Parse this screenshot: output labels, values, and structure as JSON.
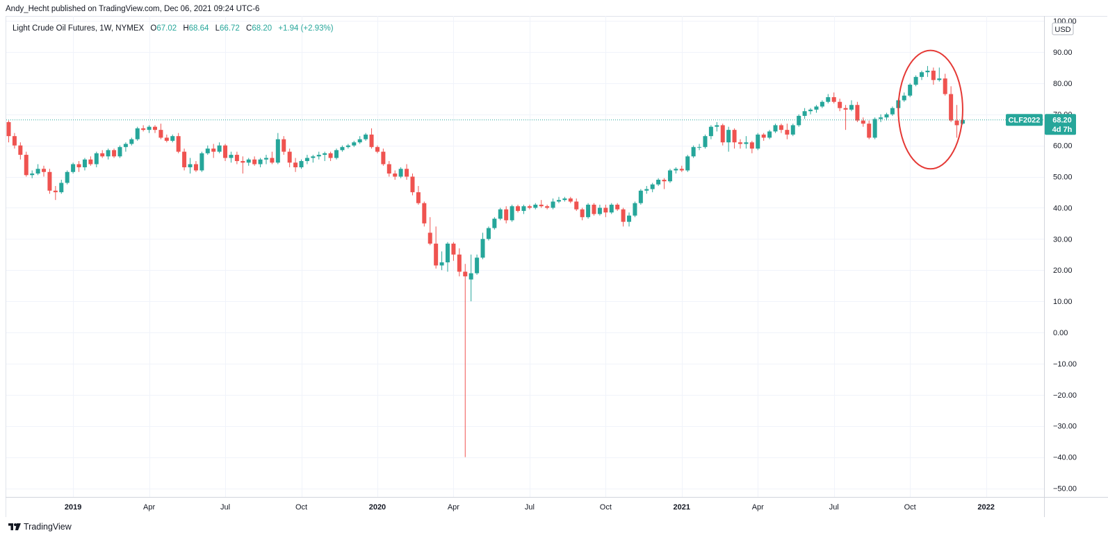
{
  "attribution": "Andy_Hecht published on TradingView.com, Dec 06, 2021 09:24 UTC-6",
  "legend": {
    "title": "Light Crude Oil Futures, 1W, NYMEX",
    "o_key": "O",
    "o_val": "67.02",
    "h_key": "H",
    "h_val": "68.64",
    "l_key": "L",
    "l_val": "66.72",
    "c_key": "C",
    "c_val": "68.20",
    "change": "+1.94 (+2.93%)"
  },
  "colors": {
    "up": "#26a69a",
    "down": "#ef5350",
    "annotation": "#e53935",
    "grid": "#f0f3fa"
  },
  "price_tag": {
    "symbol": "CLF2022",
    "price": "68.20",
    "countdown": "4d 7h",
    "value": 68.2
  },
  "currency": "USD",
  "brand": "TradingView",
  "chart_data": {
    "type": "candlestick",
    "title": "Light Crude Oil Futures, 1W, NYMEX",
    "ylim": [
      -55,
      105
    ],
    "yticks": [
      -50,
      -40,
      -30,
      -20,
      -10,
      0,
      10,
      20,
      30,
      40,
      50,
      60,
      70,
      80,
      90,
      100
    ],
    "ytick_labels": [
      "−50.00",
      "−40.00",
      "−30.00",
      "−20.00",
      "−10.00",
      "0.00",
      "10.00",
      "20.00",
      "30.00",
      "40.00",
      "50.00",
      "60.00",
      "70.00",
      "80.00",
      "90.00",
      "100.00"
    ],
    "xticks": [
      {
        "label": "2019",
        "week": 11,
        "bold": true
      },
      {
        "label": "Apr",
        "week": 24,
        "bold": false
      },
      {
        "label": "Jul",
        "week": 37,
        "bold": false
      },
      {
        "label": "Oct",
        "week": 50,
        "bold": false
      },
      {
        "label": "2020",
        "week": 63,
        "bold": true
      },
      {
        "label": "Apr",
        "week": 76,
        "bold": false
      },
      {
        "label": "Jul",
        "week": 89,
        "bold": false
      },
      {
        "label": "Oct",
        "week": 102,
        "bold": false
      },
      {
        "label": "2021",
        "week": 115,
        "bold": true
      },
      {
        "label": "Apr",
        "week": 128,
        "bold": false
      },
      {
        "label": "Jul",
        "week": 141,
        "bold": false
      },
      {
        "label": "Oct",
        "week": 154,
        "bold": false
      },
      {
        "label": "2022",
        "week": 167,
        "bold": true
      }
    ],
    "annotation": {
      "type": "ellipse",
      "center_week": 157.5,
      "center_price": 71.5,
      "half_width_weeks": 5.5,
      "half_height_price": 19
    },
    "candles": [
      {
        "o": 67.5,
        "h": 68,
        "l": 61,
        "c": 63
      },
      {
        "o": 63,
        "h": 64,
        "l": 59,
        "c": 60
      },
      {
        "o": 60,
        "h": 61,
        "l": 55.5,
        "c": 57
      },
      {
        "o": 57,
        "h": 58,
        "l": 50,
        "c": 50.5
      },
      {
        "o": 50.5,
        "h": 52,
        "l": 49.5,
        "c": 51
      },
      {
        "o": 51,
        "h": 54,
        "l": 50.5,
        "c": 52.5
      },
      {
        "o": 52.5,
        "h": 53.5,
        "l": 50,
        "c": 51.5
      },
      {
        "o": 51.5,
        "h": 52.5,
        "l": 44.5,
        "c": 45.5
      },
      {
        "o": 45.5,
        "h": 47,
        "l": 42.5,
        "c": 45
      },
      {
        "o": 45,
        "h": 49,
        "l": 44.5,
        "c": 48
      },
      {
        "o": 48,
        "h": 52,
        "l": 47.5,
        "c": 51.5
      },
      {
        "o": 51.5,
        "h": 54.5,
        "l": 51,
        "c": 54
      },
      {
        "o": 54,
        "h": 55,
        "l": 51.5,
        "c": 53
      },
      {
        "o": 53,
        "h": 56,
        "l": 52,
        "c": 55.5
      },
      {
        "o": 55.5,
        "h": 56.5,
        "l": 53.5,
        "c": 54
      },
      {
        "o": 54,
        "h": 58,
        "l": 53,
        "c": 57.5
      },
      {
        "o": 57.5,
        "h": 58.5,
        "l": 56,
        "c": 56.5
      },
      {
        "o": 56.5,
        "h": 59,
        "l": 55.5,
        "c": 58.5
      },
      {
        "o": 58.5,
        "h": 59,
        "l": 56,
        "c": 56.5
      },
      {
        "o": 56.5,
        "h": 60,
        "l": 56,
        "c": 59.5
      },
      {
        "o": 59.5,
        "h": 61,
        "l": 58,
        "c": 60.5
      },
      {
        "o": 60.5,
        "h": 62.5,
        "l": 60,
        "c": 62
      },
      {
        "o": 62,
        "h": 66,
        "l": 61.5,
        "c": 65.5
      },
      {
        "o": 65.5,
        "h": 66.5,
        "l": 64.5,
        "c": 65
      },
      {
        "o": 65,
        "h": 66.5,
        "l": 64,
        "c": 66
      },
      {
        "o": 66,
        "h": 66.5,
        "l": 64,
        "c": 65
      },
      {
        "o": 65,
        "h": 67,
        "l": 62,
        "c": 62.5
      },
      {
        "o": 62.5,
        "h": 63.5,
        "l": 61,
        "c": 61.5
      },
      {
        "o": 61.5,
        "h": 63.5,
        "l": 61,
        "c": 63
      },
      {
        "o": 63,
        "h": 64,
        "l": 57.5,
        "c": 58
      },
      {
        "o": 58,
        "h": 59,
        "l": 52,
        "c": 53
      },
      {
        "o": 53,
        "h": 56,
        "l": 51,
        "c": 54
      },
      {
        "o": 54,
        "h": 55,
        "l": 51.5,
        "c": 52
      },
      {
        "o": 52,
        "h": 58,
        "l": 51.5,
        "c": 57.5
      },
      {
        "o": 57.5,
        "h": 60,
        "l": 57,
        "c": 59
      },
      {
        "o": 59,
        "h": 60.5,
        "l": 56,
        "c": 58
      },
      {
        "o": 58,
        "h": 61,
        "l": 57.5,
        "c": 60
      },
      {
        "o": 60,
        "h": 60.5,
        "l": 55,
        "c": 56
      },
      {
        "o": 56,
        "h": 58,
        "l": 54.5,
        "c": 57
      },
      {
        "o": 57,
        "h": 58,
        "l": 54,
        "c": 55
      },
      {
        "o": 55,
        "h": 56.5,
        "l": 51,
        "c": 54.5
      },
      {
        "o": 54.5,
        "h": 56,
        "l": 53.5,
        "c": 55.5
      },
      {
        "o": 55.5,
        "h": 56.5,
        "l": 53.5,
        "c": 54
      },
      {
        "o": 54,
        "h": 56,
        "l": 53,
        "c": 55.5
      },
      {
        "o": 55.5,
        "h": 57,
        "l": 54,
        "c": 56
      },
      {
        "o": 56,
        "h": 58,
        "l": 54,
        "c": 54.5
      },
      {
        "o": 54.5,
        "h": 64,
        "l": 54,
        "c": 62
      },
      {
        "o": 62,
        "h": 63,
        "l": 57,
        "c": 58
      },
      {
        "o": 58,
        "h": 59,
        "l": 53,
        "c": 54.5
      },
      {
        "o": 54.5,
        "h": 56,
        "l": 51.5,
        "c": 53
      },
      {
        "o": 53,
        "h": 55.5,
        "l": 52.5,
        "c": 55
      },
      {
        "o": 55,
        "h": 57,
        "l": 54,
        "c": 56
      },
      {
        "o": 56,
        "h": 57,
        "l": 54.5,
        "c": 56.5
      },
      {
        "o": 56.5,
        "h": 58,
        "l": 55.5,
        "c": 57
      },
      {
        "o": 57,
        "h": 58,
        "l": 55,
        "c": 57.5
      },
      {
        "o": 57.5,
        "h": 58,
        "l": 55,
        "c": 56
      },
      {
        "o": 56,
        "h": 59,
        "l": 55.5,
        "c": 58.5
      },
      {
        "o": 58.5,
        "h": 60,
        "l": 58,
        "c": 59.5
      },
      {
        "o": 59.5,
        "h": 60.5,
        "l": 59,
        "c": 60
      },
      {
        "o": 60,
        "h": 61.5,
        "l": 59.5,
        "c": 61
      },
      {
        "o": 61,
        "h": 63,
        "l": 60.5,
        "c": 62
      },
      {
        "o": 62,
        "h": 64,
        "l": 61.5,
        "c": 63.5
      },
      {
        "o": 63.5,
        "h": 65.5,
        "l": 59,
        "c": 59.5
      },
      {
        "o": 59.5,
        "h": 60,
        "l": 57.5,
        "c": 58
      },
      {
        "o": 58,
        "h": 59,
        "l": 53.5,
        "c": 54
      },
      {
        "o": 54,
        "h": 55,
        "l": 50,
        "c": 51
      },
      {
        "o": 51,
        "h": 52,
        "l": 49,
        "c": 50
      },
      {
        "o": 50,
        "h": 53,
        "l": 49.5,
        "c": 52.5
      },
      {
        "o": 52.5,
        "h": 54,
        "l": 49,
        "c": 50
      },
      {
        "o": 50,
        "h": 51,
        "l": 44,
        "c": 45
      },
      {
        "o": 45,
        "h": 47,
        "l": 41,
        "c": 41.5
      },
      {
        "o": 41.5,
        "h": 42,
        "l": 34,
        "c": 35
      },
      {
        "o": 32,
        "h": 37,
        "l": 28,
        "c": 28.5
      },
      {
        "o": 28.5,
        "h": 34,
        "l": 20.5,
        "c": 21.5
      },
      {
        "o": 21.5,
        "h": 26,
        "l": 20,
        "c": 22.5
      },
      {
        "o": 22.5,
        "h": 29,
        "l": 19.5,
        "c": 28.5
      },
      {
        "o": 28.5,
        "h": 29,
        "l": 23,
        "c": 25
      },
      {
        "o": 25,
        "h": 27,
        "l": 18,
        "c": 19.5
      },
      {
        "o": 19.5,
        "h": 22,
        "l": -40,
        "c": 18
      },
      {
        "o": 17,
        "h": 25,
        "l": 10,
        "c": 19
      },
      {
        "o": 19,
        "h": 25,
        "l": 18.5,
        "c": 24
      },
      {
        "o": 24,
        "h": 32,
        "l": 23.5,
        "c": 30
      },
      {
        "o": 30,
        "h": 34,
        "l": 29.5,
        "c": 33.5
      },
      {
        "o": 33.5,
        "h": 37,
        "l": 33,
        "c": 36.5
      },
      {
        "o": 36.5,
        "h": 40,
        "l": 36,
        "c": 39.5
      },
      {
        "o": 39.5,
        "h": 40.5,
        "l": 35,
        "c": 36
      },
      {
        "o": 36,
        "h": 41,
        "l": 35.5,
        "c": 40.5
      },
      {
        "o": 40.5,
        "h": 41,
        "l": 38.5,
        "c": 39
      },
      {
        "o": 39,
        "h": 41,
        "l": 38,
        "c": 40.5
      },
      {
        "o": 40.5,
        "h": 41,
        "l": 39.5,
        "c": 40
      },
      {
        "o": 40,
        "h": 41.5,
        "l": 39.5,
        "c": 41
      },
      {
        "o": 41,
        "h": 42.5,
        "l": 40,
        "c": 40.5
      },
      {
        "o": 40.5,
        "h": 41,
        "l": 39.5,
        "c": 40
      },
      {
        "o": 40,
        "h": 43,
        "l": 39.5,
        "c": 42
      },
      {
        "o": 42,
        "h": 43.5,
        "l": 41.5,
        "c": 42.5
      },
      {
        "o": 42.5,
        "h": 43.5,
        "l": 42,
        "c": 43
      },
      {
        "o": 43,
        "h": 43.5,
        "l": 41.5,
        "c": 42
      },
      {
        "o": 42,
        "h": 43,
        "l": 39,
        "c": 39.5
      },
      {
        "o": 39.5,
        "h": 40,
        "l": 36,
        "c": 37
      },
      {
        "o": 37,
        "h": 41.5,
        "l": 36.5,
        "c": 41
      },
      {
        "o": 41,
        "h": 41.5,
        "l": 37.5,
        "c": 38
      },
      {
        "o": 38,
        "h": 41,
        "l": 37.5,
        "c": 40
      },
      {
        "o": 40,
        "h": 41,
        "l": 37,
        "c": 38.5
      },
      {
        "o": 38.5,
        "h": 41.5,
        "l": 38,
        "c": 41
      },
      {
        "o": 41,
        "h": 41.5,
        "l": 39,
        "c": 39.5
      },
      {
        "o": 39.5,
        "h": 40,
        "l": 34,
        "c": 35.5
      },
      {
        "o": 35.5,
        "h": 38.5,
        "l": 34,
        "c": 37.5
      },
      {
        "o": 37.5,
        "h": 42,
        "l": 37,
        "c": 41.5
      },
      {
        "o": 41.5,
        "h": 46,
        "l": 41,
        "c": 45.5
      },
      {
        "o": 45.5,
        "h": 47,
        "l": 44.5,
        "c": 46
      },
      {
        "o": 46,
        "h": 48,
        "l": 45,
        "c": 47.5
      },
      {
        "o": 47.5,
        "h": 49.5,
        "l": 47,
        "c": 49
      },
      {
        "o": 49,
        "h": 49.5,
        "l": 46,
        "c": 48.5
      },
      {
        "o": 48.5,
        "h": 52.5,
        "l": 48,
        "c": 52
      },
      {
        "o": 52,
        "h": 53,
        "l": 51,
        "c": 52.5
      },
      {
        "o": 52.5,
        "h": 53.5,
        "l": 51.5,
        "c": 52
      },
      {
        "o": 52,
        "h": 57,
        "l": 51.5,
        "c": 56.5
      },
      {
        "o": 56.5,
        "h": 60,
        "l": 56,
        "c": 59.5
      },
      {
        "o": 59.5,
        "h": 60.5,
        "l": 58.5,
        "c": 59.5
      },
      {
        "o": 59.5,
        "h": 63.5,
        "l": 59,
        "c": 63
      },
      {
        "o": 63,
        "h": 66.5,
        "l": 62,
        "c": 66
      },
      {
        "o": 66,
        "h": 67.5,
        "l": 64.5,
        "c": 66.5
      },
      {
        "o": 66.5,
        "h": 67,
        "l": 60,
        "c": 61
      },
      {
        "o": 61,
        "h": 66,
        "l": 58,
        "c": 65
      },
      {
        "o": 65,
        "h": 65.5,
        "l": 59,
        "c": 61
      },
      {
        "o": 61,
        "h": 62,
        "l": 59,
        "c": 60.5
      },
      {
        "o": 60.5,
        "h": 63,
        "l": 59,
        "c": 61
      },
      {
        "o": 61,
        "h": 61.5,
        "l": 57.5,
        "c": 59
      },
      {
        "o": 59,
        "h": 64,
        "l": 58.5,
        "c": 63.5
      },
      {
        "o": 63.5,
        "h": 64,
        "l": 61.5,
        "c": 62.5
      },
      {
        "o": 62.5,
        "h": 65,
        "l": 62,
        "c": 64.5
      },
      {
        "o": 64.5,
        "h": 67,
        "l": 64,
        "c": 66.5
      },
      {
        "o": 66.5,
        "h": 67,
        "l": 64,
        "c": 65
      },
      {
        "o": 65,
        "h": 67,
        "l": 62,
        "c": 63.5
      },
      {
        "o": 63.5,
        "h": 67,
        "l": 63,
        "c": 66.5
      },
      {
        "o": 66.5,
        "h": 70,
        "l": 66,
        "c": 69.5
      },
      {
        "o": 69.5,
        "h": 72,
        "l": 68.5,
        "c": 71
      },
      {
        "o": 71,
        "h": 72,
        "l": 70,
        "c": 71.5
      },
      {
        "o": 71.5,
        "h": 73,
        "l": 70.5,
        "c": 72.5
      },
      {
        "o": 72.5,
        "h": 74.5,
        "l": 72,
        "c": 74
      },
      {
        "o": 74,
        "h": 76.5,
        "l": 73.5,
        "c": 75.5
      },
      {
        "o": 75.5,
        "h": 77,
        "l": 73.5,
        "c": 74
      },
      {
        "o": 74,
        "h": 75,
        "l": 71,
        "c": 72
      },
      {
        "o": 72,
        "h": 73,
        "l": 65,
        "c": 71.5
      },
      {
        "o": 71.5,
        "h": 74.5,
        "l": 71,
        "c": 73
      },
      {
        "o": 73,
        "h": 74,
        "l": 67.5,
        "c": 68
      },
      {
        "o": 68,
        "h": 69,
        "l": 66,
        "c": 67
      },
      {
        "o": 67,
        "h": 68,
        "l": 62,
        "c": 62.5
      },
      {
        "o": 62.5,
        "h": 69,
        "l": 62,
        "c": 68.5
      },
      {
        "o": 68.5,
        "h": 70,
        "l": 67.5,
        "c": 69
      },
      {
        "o": 69,
        "h": 70.5,
        "l": 68,
        "c": 70
      },
      {
        "o": 70,
        "h": 72.5,
        "l": 69.5,
        "c": 72
      },
      {
        "o": 72,
        "h": 75,
        "l": 71.5,
        "c": 74.5
      },
      {
        "o": 74.5,
        "h": 77,
        "l": 74,
        "c": 76
      },
      {
        "o": 76,
        "h": 80,
        "l": 75.5,
        "c": 79.5
      },
      {
        "o": 79.5,
        "h": 82.5,
        "l": 79,
        "c": 82
      },
      {
        "o": 82,
        "h": 84,
        "l": 81,
        "c": 83.5
      },
      {
        "o": 83.5,
        "h": 85.5,
        "l": 82,
        "c": 84
      },
      {
        "o": 84,
        "h": 85,
        "l": 79.5,
        "c": 81
      },
      {
        "o": 81,
        "h": 85,
        "l": 80.5,
        "c": 81.5
      },
      {
        "o": 81.5,
        "h": 83,
        "l": 76,
        "c": 76.5
      },
      {
        "o": 76.5,
        "h": 79,
        "l": 67.5,
        "c": 68
      },
      {
        "o": 68,
        "h": 73,
        "l": 62.5,
        "c": 66.5
      },
      {
        "o": 67.02,
        "h": 68.64,
        "l": 66.72,
        "c": 68.2
      }
    ]
  }
}
